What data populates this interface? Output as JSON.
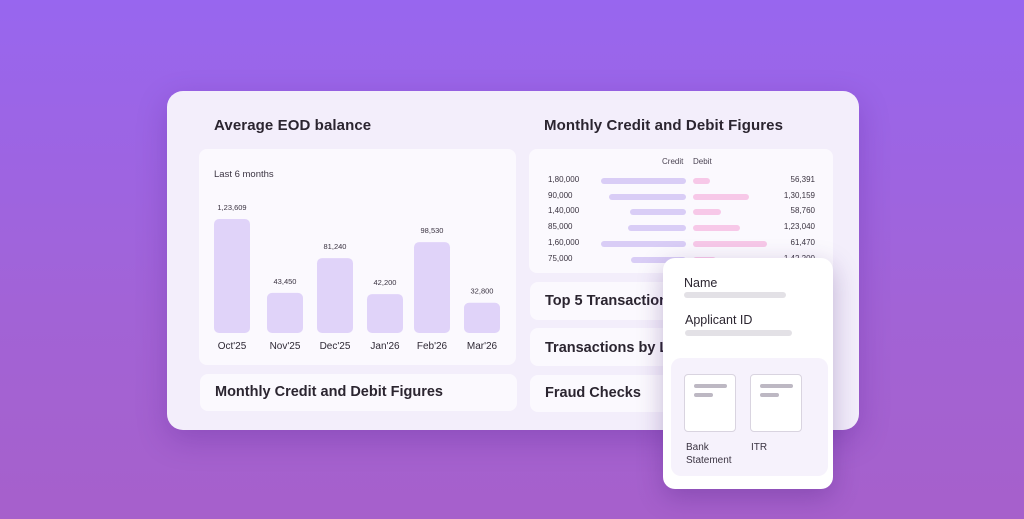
{
  "avg_eod": {
    "title": "Average EOD balance",
    "subtitle": "Last 6 months"
  },
  "chart_data": {
    "type": "bar",
    "title": "",
    "categories": [
      "Oct'25",
      "Nov'25",
      "Dec'25",
      "Jan'26",
      "Feb'26",
      "Mar'26"
    ],
    "values": [
      123609,
      43450,
      81240,
      42200,
      98530,
      32800
    ],
    "labels": [
      "1,23,609",
      "43,450",
      "81,240",
      "42,200",
      "98,530",
      "32,800"
    ],
    "bar_color": "#e0d3f9",
    "grid": false
  },
  "credit_debit": {
    "title": "Monthly Credit and Debit Figures",
    "credit_header": "Credit",
    "debit_header": "Debit",
    "credit_color": "#d9cdf6",
    "debit_color": "#f7c8e8",
    "rows": [
      {
        "credit": "1,80,000",
        "debit": "56,391",
        "credit_frac": 0.92,
        "debit_frac": 0.22
      },
      {
        "credit": "90,000",
        "debit": "1,30,159",
        "credit_frac": 0.84,
        "debit_frac": 0.75
      },
      {
        "credit": "1,40,000",
        "debit": "58,760",
        "credit_frac": 0.61,
        "debit_frac": 0.37
      },
      {
        "credit": "85,000",
        "debit": "1,23,040",
        "credit_frac": 0.63,
        "debit_frac": 0.63
      },
      {
        "credit": "1,60,000",
        "debit": "61,470",
        "credit_frac": 0.92,
        "debit_frac": 0.98
      },
      {
        "credit": "75,000",
        "debit": "1,42,200",
        "credit_frac": 0.6,
        "debit_frac": 0.3
      }
    ]
  },
  "cards": {
    "bottom_left": "Monthly Credit and Debit Figures",
    "top5": "Top 5 Transactions",
    "transactions_by": "Transactions by L",
    "fraud": "Fraud Checks"
  },
  "applicant": {
    "name_label": "Name",
    "id_label": "Applicant ID",
    "docs": [
      {
        "label": "Bank Statement"
      },
      {
        "label": "ITR"
      }
    ]
  }
}
